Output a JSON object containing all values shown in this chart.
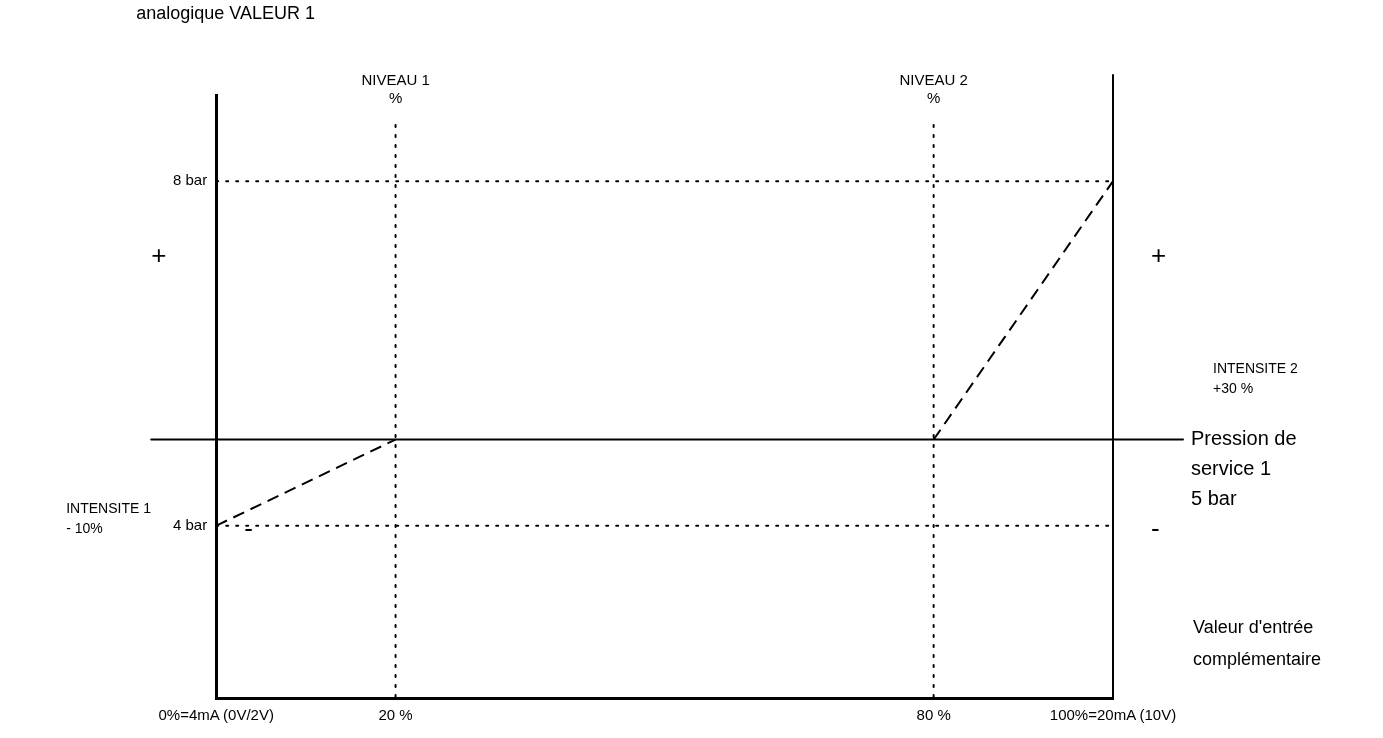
{
  "chart_data": {
    "type": "line",
    "ylabel": "analogique VALEUR 1",
    "xlabel": "Valeur d'entrée\ncomplémentaire",
    "xlim": [
      0,
      100
    ],
    "xticks": [
      {
        "value": 0,
        "label": "0%=4mA (0V/2V)"
      },
      {
        "value": 20,
        "label": "20 %"
      },
      {
        "value": 80,
        "label": "80 %"
      },
      {
        "value": 100,
        "label": "100%=20mA (10V)"
      }
    ],
    "ylim": [
      2,
      9
    ],
    "yticks": [
      {
        "value": 4,
        "label": "4 bar"
      },
      {
        "value": 8,
        "label": "8 bar"
      }
    ],
    "series": [
      {
        "color": "#000000",
        "x": [
          0,
          20
        ],
        "values": [
          4,
          5
        ]
      },
      {
        "color": "#000000",
        "x": [
          80,
          100
        ],
        "values": [
          5,
          8
        ]
      }
    ],
    "line_style": "dashed",
    "marker": "none",
    "grid": false,
    "legend": false,
    "ref_lines": [
      {
        "axis": "y",
        "value": 8,
        "line_style": "dotted",
        "color": "#000000"
      },
      {
        "axis": "y",
        "value": 4,
        "line_style": "dotted",
        "color": "#000000"
      },
      {
        "axis": "x",
        "value": 20,
        "line_style": "dotted",
        "color": "#000000",
        "label": "NIVEAU 1\n%"
      },
      {
        "axis": "x",
        "value": 80,
        "line_style": "dotted",
        "color": "#000000",
        "label": "NIVEAU 2\n%"
      },
      {
        "axis": "y",
        "value": 5,
        "line_style": "solid",
        "color": "#000000",
        "label": "Pression de\nservice 1\n5 bar"
      },
      {
        "axis": "x",
        "value": 100,
        "line_style": "solid",
        "color": "#000000"
      }
    ],
    "annotations": [
      "+",
      "-",
      "INTENSITE 1\n- 10%",
      "INTENSITE 2\n+30 %",
      "+",
      "-"
    ]
  }
}
